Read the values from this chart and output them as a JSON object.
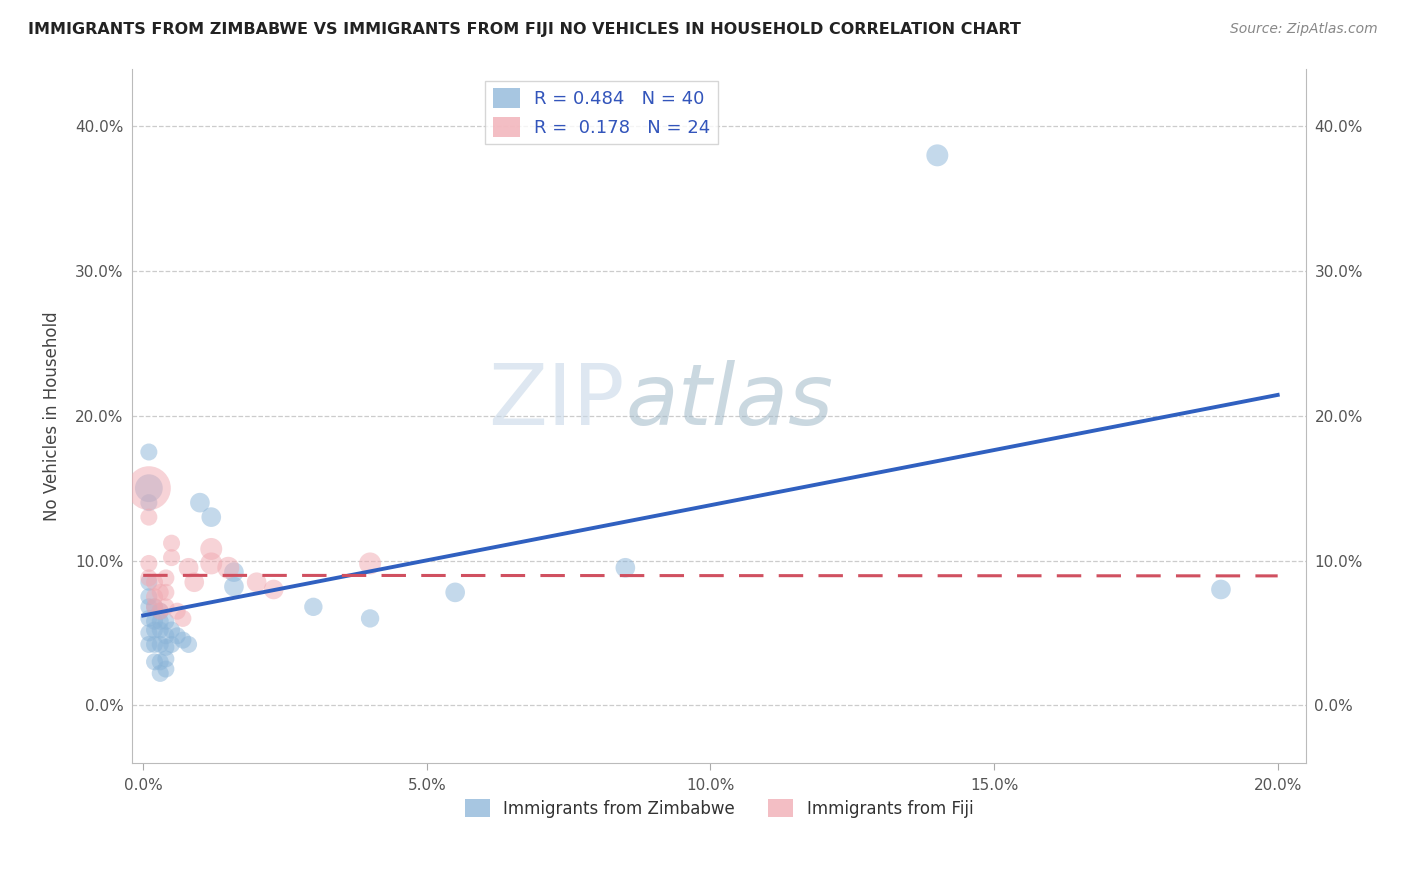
{
  "title": "IMMIGRANTS FROM ZIMBABWE VS IMMIGRANTS FROM FIJI NO VEHICLES IN HOUSEHOLD CORRELATION CHART",
  "source": "Source: ZipAtlas.com",
  "xlabel_zimbabwe": "Immigrants from Zimbabwe",
  "xlabel_fiji": "Immigrants from Fiji",
  "ylabel": "No Vehicles in Household",
  "r_zimbabwe": 0.484,
  "n_zimbabwe": 40,
  "r_fiji": 0.178,
  "n_fiji": 24,
  "xlim": [
    -0.002,
    0.205
  ],
  "ylim": [
    -0.04,
    0.44
  ],
  "x_ticks": [
    0.0,
    0.05,
    0.1,
    0.15,
    0.2
  ],
  "y_ticks": [
    0.0,
    0.1,
    0.2,
    0.3,
    0.4
  ],
  "x_tick_labels": [
    "0.0%",
    "5.0%",
    "10.0%",
    "15.0%",
    "20.0%"
  ],
  "y_tick_labels": [
    "0.0%",
    "10.0%",
    "20.0%",
    "30.0%",
    "40.0%"
  ],
  "color_zimbabwe": "#8ab4d8",
  "color_fiji": "#f0a8b0",
  "color_line_zimbabwe": "#3060c0",
  "color_line_fiji": "#d05060",
  "watermark_zip": "ZIP",
  "watermark_atlas": "atlas",
  "zimbabwe_points": [
    [
      0.001,
      0.175
    ],
    [
      0.001,
      0.15
    ],
    [
      0.001,
      0.14
    ],
    [
      0.001,
      0.085
    ],
    [
      0.001,
      0.075
    ],
    [
      0.001,
      0.068
    ],
    [
      0.001,
      0.06
    ],
    [
      0.001,
      0.05
    ],
    [
      0.001,
      0.042
    ],
    [
      0.002,
      0.068
    ],
    [
      0.002,
      0.058
    ],
    [
      0.002,
      0.052
    ],
    [
      0.002,
      0.042
    ],
    [
      0.002,
      0.03
    ],
    [
      0.003,
      0.065
    ],
    [
      0.003,
      0.058
    ],
    [
      0.003,
      0.052
    ],
    [
      0.003,
      0.042
    ],
    [
      0.003,
      0.03
    ],
    [
      0.003,
      0.022
    ],
    [
      0.004,
      0.058
    ],
    [
      0.004,
      0.048
    ],
    [
      0.004,
      0.04
    ],
    [
      0.004,
      0.032
    ],
    [
      0.004,
      0.025
    ],
    [
      0.005,
      0.052
    ],
    [
      0.005,
      0.042
    ],
    [
      0.006,
      0.048
    ],
    [
      0.007,
      0.045
    ],
    [
      0.008,
      0.042
    ],
    [
      0.01,
      0.14
    ],
    [
      0.012,
      0.13
    ],
    [
      0.016,
      0.092
    ],
    [
      0.016,
      0.082
    ],
    [
      0.03,
      0.068
    ],
    [
      0.04,
      0.06
    ],
    [
      0.055,
      0.078
    ],
    [
      0.085,
      0.095
    ],
    [
      0.14,
      0.38
    ],
    [
      0.19,
      0.08
    ]
  ],
  "fiji_points": [
    [
      0.001,
      0.15
    ],
    [
      0.001,
      0.13
    ],
    [
      0.001,
      0.098
    ],
    [
      0.001,
      0.088
    ],
    [
      0.002,
      0.085
    ],
    [
      0.002,
      0.075
    ],
    [
      0.002,
      0.068
    ],
    [
      0.003,
      0.078
    ],
    [
      0.003,
      0.065
    ],
    [
      0.004,
      0.088
    ],
    [
      0.004,
      0.078
    ],
    [
      0.004,
      0.068
    ],
    [
      0.005,
      0.112
    ],
    [
      0.005,
      0.102
    ],
    [
      0.006,
      0.065
    ],
    [
      0.007,
      0.06
    ],
    [
      0.008,
      0.095
    ],
    [
      0.009,
      0.085
    ],
    [
      0.012,
      0.108
    ],
    [
      0.012,
      0.098
    ],
    [
      0.015,
      0.095
    ],
    [
      0.02,
      0.085
    ],
    [
      0.023,
      0.08
    ],
    [
      0.04,
      0.098
    ]
  ],
  "zimbabwe_sizes": [
    30,
    80,
    30,
    30,
    30,
    30,
    30,
    30,
    30,
    30,
    30,
    30,
    30,
    30,
    30,
    30,
    30,
    30,
    30,
    30,
    30,
    30,
    30,
    30,
    30,
    30,
    30,
    30,
    30,
    30,
    40,
    40,
    40,
    40,
    35,
    35,
    40,
    40,
    50,
    40
  ],
  "fiji_sizes": [
    200,
    30,
    30,
    30,
    30,
    30,
    30,
    30,
    30,
    30,
    30,
    30,
    30,
    30,
    30,
    30,
    40,
    40,
    50,
    50,
    50,
    40,
    40,
    50
  ]
}
